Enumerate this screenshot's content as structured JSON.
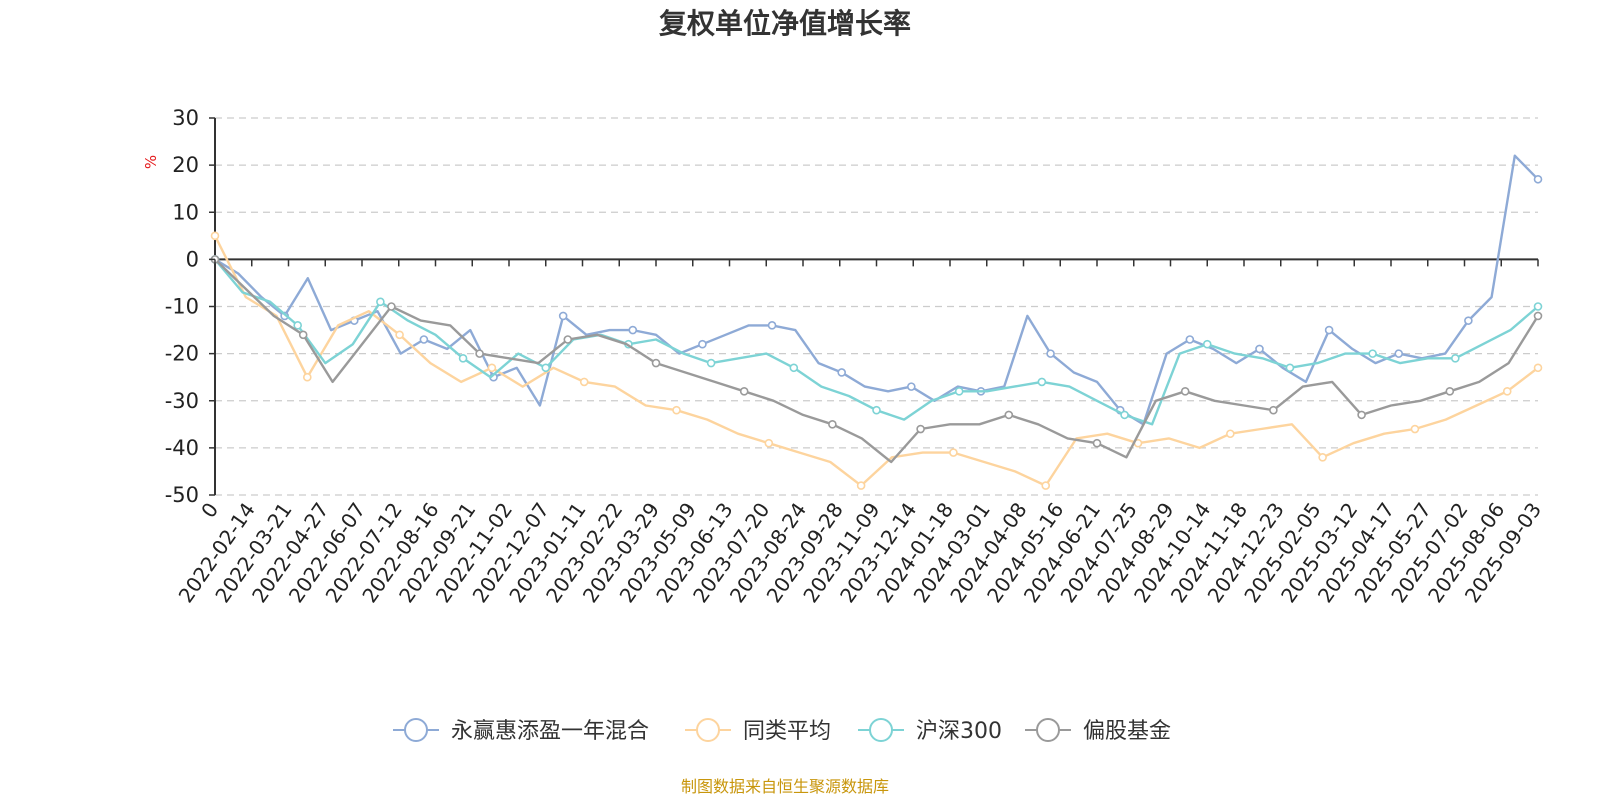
{
  "chart_data": {
    "type": "line",
    "title": "复权单位净值增长率",
    "unit": "%",
    "ylim": [
      -50,
      30
    ],
    "yticks": [
      30,
      20,
      10,
      0,
      -10,
      -20,
      -30,
      -40,
      -50
    ],
    "x_tick_labels": [
      "0",
      "2022-02-14",
      "2022-03-21",
      "2022-04-27",
      "2022-06-07",
      "2022-07-12",
      "2022-08-16",
      "2022-09-21",
      "2022-11-02",
      "2022-12-07",
      "2023-01-11",
      "2023-02-22",
      "2023-03-29",
      "2023-05-09",
      "2023-06-13",
      "2023-07-20",
      "2023-08-24",
      "2023-09-28",
      "2023-11-09",
      "2023-12-14",
      "2024-01-18",
      "2024-03-01",
      "2024-04-08",
      "2024-05-16",
      "2024-06-21",
      "2024-07-25",
      "2024-08-29",
      "2024-10-14",
      "2024-11-18",
      "2024-12-23",
      "2025-02-05",
      "2025-03-12",
      "2025-04-17",
      "2025-05-27",
      "2025-07-02",
      "2025-08-06",
      "2025-09-03"
    ],
    "grid": true,
    "legend_position": "bottom",
    "series": [
      {
        "name": "永赢惠添盈一年混合",
        "color": "#8eaad6",
        "values": [
          0,
          -3,
          -8,
          -12,
          -4,
          -15,
          -13,
          -11,
          -20,
          -17,
          -19,
          -15,
          -25,
          -23,
          -31,
          -12,
          -16,
          -15,
          -15,
          -16,
          -20,
          -18,
          -16,
          -14,
          -14,
          -15,
          -22,
          -24,
          -27,
          -28,
          -27,
          -30,
          -27,
          -28,
          -27,
          -12,
          -20,
          -24,
          -26,
          -32,
          -35,
          -20,
          -17,
          -19,
          -22,
          -19,
          -23,
          -26,
          -15,
          -19,
          -22,
          -20,
          -21,
          -20,
          -13,
          -8,
          22,
          17
        ]
      },
      {
        "name": "同类平均",
        "color": "#fdd49e",
        "values": [
          5,
          -8,
          -12,
          -25,
          -14,
          -11,
          -16,
          -22,
          -26,
          -23,
          -27,
          -23,
          -26,
          -27,
          -31,
          -32,
          -34,
          -37,
          -39,
          -41,
          -43,
          -48,
          -42,
          -41,
          -41,
          -43,
          -45,
          -48,
          -38,
          -37,
          -39,
          -38,
          -40,
          -37,
          -36,
          -35,
          -42,
          -39,
          -37,
          -36,
          -34,
          -31,
          -28,
          -23
        ]
      },
      {
        "name": "沪深300",
        "color": "#7dd3d5",
        "values": [
          0,
          -7,
          -9,
          -14,
          -22,
          -18,
          -9,
          -13,
          -16,
          -21,
          -25,
          -20,
          -23,
          -17,
          -16,
          -18,
          -17,
          -20,
          -22,
          -21,
          -20,
          -23,
          -27,
          -29,
          -32,
          -34,
          -30,
          -28,
          -28,
          -27,
          -26,
          -27,
          -30,
          -33,
          -35,
          -20,
          -18,
          -20,
          -21,
          -23,
          -22,
          -20,
          -20,
          -22,
          -21,
          -21,
          -18,
          -15,
          -10
        ]
      },
      {
        "name": "偏股基金",
        "color": "#9a9a9a",
        "values": [
          0,
          -6,
          -12,
          -16,
          -26,
          -18,
          -10,
          -13,
          -14,
          -20,
          -21,
          -22,
          -17,
          -16,
          -18,
          -22,
          -24,
          -26,
          -28,
          -30,
          -33,
          -35,
          -38,
          -43,
          -36,
          -35,
          -35,
          -33,
          -35,
          -38,
          -39,
          -42,
          -30,
          -28,
          -30,
          -31,
          -32,
          -27,
          -26,
          -33,
          -31,
          -30,
          -28,
          -26,
          -22,
          -12
        ]
      }
    ]
  },
  "source_note": "制图数据来自恒生聚源数据库"
}
